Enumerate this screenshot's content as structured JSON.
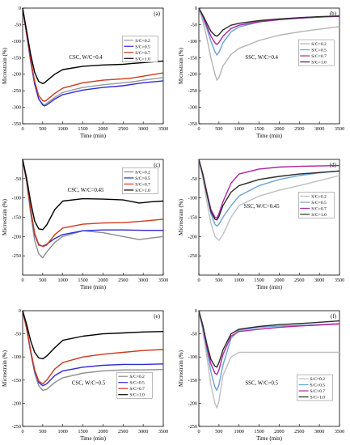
{
  "chart_data": [
    {
      "type": "line",
      "panel_label": "(a)",
      "annotation": "CSC, W/C=0.4",
      "xlabel": "Time (min)",
      "ylabel": "Microstrain (%)",
      "xlim": [
        0,
        3500
      ],
      "ylim": [
        -350,
        0
      ],
      "xticks": [
        0,
        500,
        1000,
        1500,
        2000,
        2500,
        3000,
        3500
      ],
      "yticks": [
        0,
        -50,
        -100,
        -150,
        -200,
        -250,
        -300,
        -350
      ],
      "legend_position": "top-right",
      "series": [
        {
          "name": "S/C=0.2",
          "color": "#999999",
          "x": [
            0,
            100,
            200,
            300,
            400,
            500,
            550,
            600,
            800,
            1000,
            1500,
            2000,
            2500,
            2700,
            3000,
            3500
          ],
          "y": [
            0,
            -80,
            -160,
            -230,
            -275,
            -290,
            -292,
            -288,
            -270,
            -255,
            -240,
            -232,
            -226,
            -224,
            -218,
            -210
          ]
        },
        {
          "name": "S/C=0.5",
          "color": "#2b2bd6",
          "x": [
            0,
            100,
            200,
            300,
            400,
            500,
            550,
            600,
            800,
            1000,
            1500,
            2000,
            2500,
            2700,
            3000,
            3500
          ],
          "y": [
            0,
            -80,
            -160,
            -230,
            -275,
            -293,
            -296,
            -293,
            -275,
            -262,
            -248,
            -240,
            -235,
            -231,
            -226,
            -220
          ]
        },
        {
          "name": "S/C=0.7",
          "color": "#cc3a1c",
          "x": [
            0,
            100,
            200,
            300,
            400,
            500,
            550,
            600,
            800,
            1000,
            1500,
            2000,
            2500,
            2700,
            3000,
            3500
          ],
          "y": [
            0,
            -78,
            -155,
            -222,
            -265,
            -280,
            -282,
            -278,
            -258,
            -242,
            -226,
            -218,
            -214,
            -212,
            -206,
            -196
          ]
        },
        {
          "name": "S/C=1.0",
          "color": "#000000",
          "x": [
            0,
            100,
            200,
            300,
            400,
            500,
            550,
            600,
            800,
            1000,
            1500,
            2000,
            2500,
            2700,
            3000,
            3500
          ],
          "y": [
            0,
            -70,
            -140,
            -195,
            -222,
            -228,
            -226,
            -220,
            -200,
            -186,
            -176,
            -172,
            -170,
            -168,
            -165,
            -160
          ]
        }
      ]
    },
    {
      "type": "line",
      "panel_label": "(b)",
      "annotation": "SSC, W/C=0.4",
      "xlabel": "Time (min)",
      "ylabel": "Microstrain (%)",
      "xlim": [
        0,
        3500
      ],
      "ylim": [
        -350,
        0
      ],
      "xticks": [
        0,
        500,
        1000,
        1500,
        2000,
        2500,
        3000,
        3500
      ],
      "yticks": [
        0,
        -50,
        -100,
        -150,
        -200,
        -250,
        -300,
        -350
      ],
      "legend_position": "top-right",
      "series": [
        {
          "name": "S/C=0.2",
          "color": "#b3b3b3",
          "x": [
            0,
            100,
            200,
            300,
            400,
            450,
            500,
            600,
            800,
            1000,
            1500,
            2000,
            2500,
            3000,
            3500
          ],
          "y": [
            0,
            -40,
            -90,
            -150,
            -200,
            -218,
            -210,
            -175,
            -140,
            -122,
            -98,
            -82,
            -72,
            -64,
            -56
          ]
        },
        {
          "name": "S/C=0.5",
          "color": "#6aa2d8",
          "x": [
            0,
            100,
            200,
            300,
            400,
            450,
            500,
            600,
            800,
            1000,
            1500,
            2000,
            2500,
            3000,
            3500
          ],
          "y": [
            0,
            -28,
            -62,
            -100,
            -132,
            -142,
            -134,
            -105,
            -72,
            -57,
            -42,
            -35,
            -31,
            -27,
            -24
          ]
        },
        {
          "name": "S/C=0.7",
          "color": "#b0229f",
          "x": [
            0,
            100,
            200,
            300,
            400,
            450,
            500,
            600,
            800,
            1000,
            1500,
            2000,
            2500,
            3000,
            3500
          ],
          "y": [
            0,
            -25,
            -55,
            -85,
            -105,
            -110,
            -104,
            -85,
            -62,
            -52,
            -41,
            -35,
            -30,
            -27,
            -25
          ]
        },
        {
          "name": "S/C=1.0",
          "color": "#2b2b2b",
          "x": [
            0,
            100,
            200,
            300,
            400,
            450,
            500,
            600,
            800,
            1000,
            1500,
            2000,
            2500,
            3000,
            3500
          ],
          "y": [
            0,
            -22,
            -46,
            -70,
            -83,
            -85,
            -80,
            -66,
            -52,
            -46,
            -38,
            -33,
            -29,
            -26,
            -24
          ]
        }
      ]
    },
    {
      "type": "line",
      "panel_label": "(c)",
      "annotation": "CSC, W/C=0.45",
      "xlabel": "Time (min)",
      "ylabel": "Microstrain (%)",
      "xlim": [
        0,
        3500
      ],
      "ylim": [
        -300,
        0
      ],
      "xticks": [
        0,
        500,
        1000,
        1500,
        2000,
        2500,
        3000,
        3500
      ],
      "yticks": [
        -50,
        -100,
        -150,
        -200,
        -250
      ],
      "legend_position": "top-right",
      "series": [
        {
          "name": "S/C=0.2",
          "color": "#8c8c8c",
          "x": [
            0,
            100,
            200,
            300,
            400,
            500,
            600,
            800,
            1000,
            1500,
            2000,
            2500,
            2900,
            3200,
            3500
          ],
          "y": [
            0,
            -60,
            -140,
            -210,
            -245,
            -255,
            -240,
            -215,
            -200,
            -185,
            -190,
            -200,
            -208,
            -204,
            -200
          ]
        },
        {
          "name": "S/C=0.5",
          "color": "#2b2bd6",
          "x": [
            0,
            100,
            200,
            300,
            400,
            500,
            600,
            800,
            1000,
            1500,
            2000,
            2500,
            3000,
            3500
          ],
          "y": [
            0,
            -55,
            -130,
            -195,
            -222,
            -225,
            -220,
            -205,
            -195,
            -185,
            -183,
            -183,
            -184,
            -184
          ]
        },
        {
          "name": "S/C=0.7",
          "color": "#cc3a1c",
          "x": [
            0,
            100,
            200,
            300,
            400,
            500,
            600,
            800,
            1000,
            1500,
            2000,
            2500,
            3000,
            3500
          ],
          "y": [
            0,
            -55,
            -128,
            -192,
            -220,
            -226,
            -222,
            -195,
            -178,
            -168,
            -165,
            -164,
            -160,
            -155
          ]
        },
        {
          "name": "S/C=1.0",
          "color": "#000000",
          "x": [
            0,
            100,
            200,
            300,
            400,
            500,
            600,
            800,
            1000,
            1500,
            2000,
            2500,
            2900,
            3200,
            3500
          ],
          "y": [
            0,
            -50,
            -110,
            -160,
            -180,
            -182,
            -170,
            -130,
            -108,
            -102,
            -103,
            -105,
            -113,
            -110,
            -108
          ]
        }
      ]
    },
    {
      "type": "line",
      "panel_label": "(d)",
      "annotation": "SSC, W/C=0.45",
      "xlabel": "Time (min)",
      "ylabel": "Microstrain (%)",
      "xlim": [
        0,
        3500
      ],
      "ylim": [
        -300,
        0
      ],
      "xticks": [
        0,
        500,
        1000,
        1500,
        2000,
        2500,
        3000,
        3500
      ],
      "yticks": [
        -50,
        -100,
        -150,
        -200,
        -250
      ],
      "legend_position": "top-right",
      "series": [
        {
          "name": "S/C=0.2",
          "color": "#bfbfbf",
          "x": [
            0,
            100,
            200,
            300,
            400,
            500,
            600,
            800,
            1000,
            1500,
            2000,
            2500,
            3000,
            3500
          ],
          "y": [
            0,
            -50,
            -110,
            -165,
            -200,
            -210,
            -195,
            -150,
            -120,
            -95,
            -80,
            -68,
            -55,
            -42
          ]
        },
        {
          "name": "S/C=0.5",
          "color": "#6aa2d8",
          "x": [
            0,
            100,
            200,
            300,
            400,
            450,
            500,
            600,
            800,
            1000,
            1500,
            2000,
            2500,
            3000,
            3500
          ],
          "y": [
            0,
            -40,
            -90,
            -140,
            -168,
            -173,
            -168,
            -150,
            -120,
            -95,
            -68,
            -52,
            -42,
            -35,
            -30
          ]
        },
        {
          "name": "S/C=0.7",
          "color": "#b0229f",
          "x": [
            0,
            100,
            200,
            300,
            400,
            450,
            500,
            600,
            800,
            1000,
            1500,
            2000,
            2500,
            3000,
            3500
          ],
          "y": [
            0,
            -38,
            -85,
            -130,
            -150,
            -152,
            -140,
            -110,
            -62,
            -38,
            -25,
            -20,
            -18,
            -17,
            -16
          ]
        },
        {
          "name": "S/C=1.0",
          "color": "#2b2b2b",
          "x": [
            0,
            100,
            200,
            300,
            400,
            450,
            500,
            600,
            800,
            1000,
            1500,
            2000,
            2500,
            3000,
            3500
          ],
          "y": [
            0,
            -40,
            -90,
            -135,
            -155,
            -157,
            -148,
            -120,
            -85,
            -68,
            -52,
            -44,
            -38,
            -34,
            -30
          ]
        }
      ]
    },
    {
      "type": "line",
      "panel_label": "(e)",
      "annotation": "CSC, W/C=0.5",
      "xlabel": "Time (min)",
      "ylabel": "Microstrain (%)",
      "xlim": [
        0,
        3500
      ],
      "ylim": [
        -250,
        0
      ],
      "xticks": [
        0,
        500,
        1000,
        1500,
        2000,
        2500,
        3000,
        3500
      ],
      "yticks": [
        0,
        -50,
        -100,
        -150,
        -200,
        -250
      ],
      "legend_position": "bottom-right",
      "series": [
        {
          "name": "S/C=0.2",
          "color": "#8c8c8c",
          "x": [
            0,
            100,
            200,
            300,
            400,
            500,
            600,
            800,
            1000,
            1500,
            2000,
            2500,
            3000,
            3500
          ],
          "y": [
            0,
            -40,
            -90,
            -135,
            -162,
            -172,
            -170,
            -155,
            -145,
            -135,
            -130,
            -128,
            -128,
            -127
          ]
        },
        {
          "name": "S/C=0.5",
          "color": "#2b2bd6",
          "x": [
            0,
            100,
            200,
            300,
            400,
            500,
            600,
            800,
            1000,
            1500,
            2000,
            2500,
            3000,
            3500
          ],
          "y": [
            0,
            -38,
            -88,
            -130,
            -155,
            -162,
            -158,
            -140,
            -130,
            -122,
            -118,
            -116,
            -116,
            -115
          ]
        },
        {
          "name": "S/C=0.7",
          "color": "#cc3a1c",
          "x": [
            0,
            100,
            200,
            300,
            400,
            500,
            600,
            800,
            1000,
            1500,
            2000,
            2500,
            3000,
            3500
          ],
          "y": [
            0,
            -38,
            -86,
            -128,
            -152,
            -158,
            -150,
            -126,
            -112,
            -100,
            -94,
            -90,
            -86,
            -84
          ]
        },
        {
          "name": "S/C=1.0",
          "color": "#000000",
          "x": [
            0,
            100,
            200,
            300,
            400,
            500,
            600,
            800,
            1000,
            1500,
            2000,
            2500,
            3000,
            3500
          ],
          "y": [
            0,
            -30,
            -65,
            -90,
            -102,
            -104,
            -98,
            -80,
            -64,
            -55,
            -50,
            -48,
            -46,
            -45
          ]
        }
      ]
    },
    {
      "type": "line",
      "panel_label": "(f)",
      "annotation": "SSC, W/C=0.5",
      "xlabel": "Time (min)",
      "ylabel": "Microstrain (%)",
      "xlim": [
        0,
        3500
      ],
      "ylim": [
        -250,
        0
      ],
      "xticks": [
        0,
        500,
        1000,
        1500,
        2000,
        2500,
        3000,
        3500
      ],
      "yticks": [
        0,
        -50,
        -100,
        -150,
        -200,
        -250
      ],
      "legend_position": "bottom-right",
      "series": [
        {
          "name": "S/C=0.2",
          "color": "#bfbfbf",
          "x": [
            0,
            100,
            200,
            300,
            400,
            450,
            500,
            600,
            800,
            1000,
            1500,
            2000,
            2500,
            3000,
            3500
          ],
          "y": [
            0,
            -45,
            -100,
            -160,
            -200,
            -210,
            -195,
            -140,
            -100,
            -90,
            -90,
            -90,
            -90,
            -90,
            -90
          ]
        },
        {
          "name": "S/C=0.5",
          "color": "#6aa2d8",
          "x": [
            0,
            100,
            200,
            300,
            400,
            450,
            500,
            600,
            800,
            1000,
            1500,
            2000,
            2500,
            3000,
            3500
          ],
          "y": [
            0,
            -38,
            -85,
            -132,
            -165,
            -172,
            -160,
            -118,
            -60,
            -42,
            -36,
            -33,
            -32,
            -30,
            -28
          ]
        },
        {
          "name": "S/C=0.7",
          "color": "#b0229f",
          "x": [
            0,
            100,
            200,
            300,
            400,
            450,
            500,
            600,
            800,
            1000,
            1500,
            2000,
            2500,
            3000,
            3500
          ],
          "y": [
            0,
            -35,
            -78,
            -115,
            -135,
            -138,
            -128,
            -95,
            -55,
            -45,
            -40,
            -36,
            -33,
            -31,
            -29
          ]
        },
        {
          "name": "S/C=1.0",
          "color": "#2b2b2b",
          "x": [
            0,
            100,
            200,
            300,
            400,
            450,
            500,
            600,
            800,
            1000,
            1500,
            2000,
            2500,
            3000,
            3500
          ],
          "y": [
            0,
            -32,
            -72,
            -105,
            -120,
            -122,
            -112,
            -85,
            -50,
            -40,
            -34,
            -30,
            -28,
            -25,
            -22
          ]
        }
      ]
    }
  ]
}
